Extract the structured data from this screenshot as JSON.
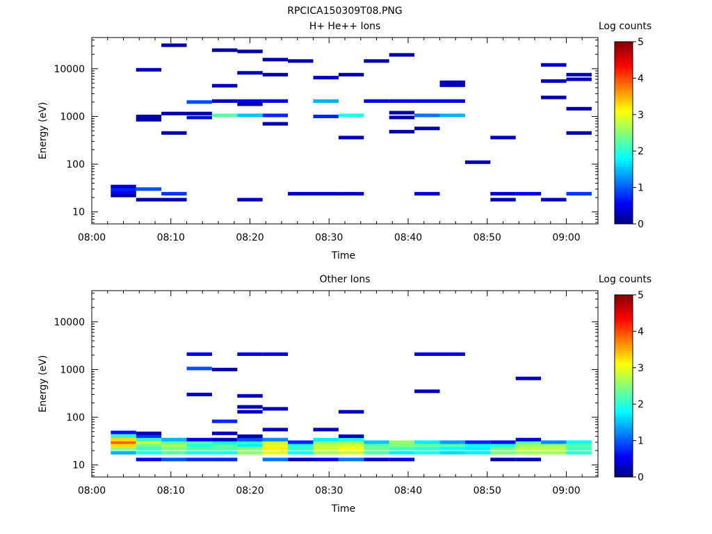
{
  "figure_title": "RPCICA150309T08.PNG",
  "colorbar": {
    "label": "Log counts",
    "ticks": [
      "0",
      "1",
      "2",
      "3",
      "4",
      "5"
    ]
  },
  "chart_data": [
    {
      "type": "heatmap",
      "title": "H+ He++ Ions",
      "xlabel": "Time",
      "ylabel": "Energy (eV)",
      "x_ticks": [
        "08:00",
        "08:10",
        "08:20",
        "08:30",
        "08:40",
        "08:50",
        "09:00"
      ],
      "y_ticks": [
        "10",
        "100",
        "1000",
        "10000"
      ],
      "y_scale": "log",
      "ylim": [
        5.6,
        45000
      ],
      "xlim_minutes": [
        0,
        64
      ],
      "colorbar_range": [
        0,
        5
      ],
      "time_bins_start_min": [
        2.4,
        5.6,
        8.8,
        12.0,
        15.2,
        18.4,
        21.6,
        24.8,
        28.0,
        31.2,
        34.4,
        37.6,
        40.8,
        44.0,
        47.2,
        50.4,
        53.6,
        56.8,
        60.0
      ],
      "cells": [
        {
          "bin": 0,
          "energy": 22,
          "v": 0.2
        },
        {
          "bin": 0,
          "energy": 26,
          "v": 0.6
        },
        {
          "bin": 0,
          "energy": 30,
          "v": 0.8
        },
        {
          "bin": 0,
          "energy": 34,
          "v": 0.4
        },
        {
          "bin": 1,
          "energy": 18,
          "v": 0.2
        },
        {
          "bin": 1,
          "energy": 30,
          "v": 1.0
        },
        {
          "bin": 1,
          "energy": 850,
          "v": 0.2
        },
        {
          "bin": 1,
          "energy": 1000,
          "v": 0.2
        },
        {
          "bin": 1,
          "energy": 9500,
          "v": 0.3
        },
        {
          "bin": 2,
          "energy": 18,
          "v": 0.2
        },
        {
          "bin": 2,
          "energy": 24,
          "v": 0.9
        },
        {
          "bin": 2,
          "energy": 450,
          "v": 0.2
        },
        {
          "bin": 2,
          "energy": 1150,
          "v": 0.2
        },
        {
          "bin": 2,
          "energy": 31000,
          "v": 0.2
        },
        {
          "bin": 3,
          "energy": 950,
          "v": 0.4
        },
        {
          "bin": 3,
          "energy": 1100,
          "v": 2.2
        },
        {
          "bin": 3,
          "energy": 1150,
          "v": 0.2
        },
        {
          "bin": 3,
          "energy": 2000,
          "v": 1.0
        },
        {
          "bin": 4,
          "energy": 1050,
          "v": 2.3
        },
        {
          "bin": 4,
          "energy": 2100,
          "v": 0.3
        },
        {
          "bin": 4,
          "energy": 4400,
          "v": 0.3
        },
        {
          "bin": 4,
          "energy": 24500,
          "v": 0.2
        },
        {
          "bin": 5,
          "energy": 18,
          "v": 0.3
        },
        {
          "bin": 5,
          "energy": 1050,
          "v": 1.6
        },
        {
          "bin": 5,
          "energy": 1800,
          "v": 0.3
        },
        {
          "bin": 5,
          "energy": 2100,
          "v": 0.5
        },
        {
          "bin": 5,
          "energy": 8200,
          "v": 0.3
        },
        {
          "bin": 5,
          "energy": 23000,
          "v": 0.2
        },
        {
          "bin": 6,
          "energy": 700,
          "v": 0.2
        },
        {
          "bin": 6,
          "energy": 1050,
          "v": 0.8
        },
        {
          "bin": 6,
          "energy": 2100,
          "v": 0.5
        },
        {
          "bin": 6,
          "energy": 7500,
          "v": 0.2
        },
        {
          "bin": 6,
          "energy": 15500,
          "v": 0.2
        },
        {
          "bin": 7,
          "energy": 24,
          "v": 0.3
        },
        {
          "bin": 7,
          "energy": 14500,
          "v": 0.2
        },
        {
          "bin": 8,
          "energy": 24,
          "v": 0.3
        },
        {
          "bin": 8,
          "energy": 1000,
          "v": 0.8
        },
        {
          "bin": 8,
          "energy": 2100,
          "v": 1.5
        },
        {
          "bin": 8,
          "energy": 6500,
          "v": 0.3
        },
        {
          "bin": 9,
          "energy": 24,
          "v": 0.3
        },
        {
          "bin": 9,
          "energy": 360,
          "v": 0.3
        },
        {
          "bin": 9,
          "energy": 1050,
          "v": 2.0
        },
        {
          "bin": 9,
          "energy": 7500,
          "v": 0.2
        },
        {
          "bin": 10,
          "energy": 2100,
          "v": 0.5
        },
        {
          "bin": 10,
          "energy": 14500,
          "v": 0.2
        },
        {
          "bin": 11,
          "energy": 480,
          "v": 0.2
        },
        {
          "bin": 11,
          "energy": 950,
          "v": 0.2
        },
        {
          "bin": 11,
          "energy": 1200,
          "v": 0.2
        },
        {
          "bin": 11,
          "energy": 2100,
          "v": 0.5
        },
        {
          "bin": 11,
          "energy": 19500,
          "v": 0.2
        },
        {
          "bin": 12,
          "energy": 24,
          "v": 0.4
        },
        {
          "bin": 12,
          "energy": 560,
          "v": 0.2
        },
        {
          "bin": 12,
          "energy": 1050,
          "v": 1.2
        },
        {
          "bin": 12,
          "energy": 2100,
          "v": 0.5
        },
        {
          "bin": 13,
          "energy": 1050,
          "v": 1.5
        },
        {
          "bin": 13,
          "energy": 2100,
          "v": 0.5
        },
        {
          "bin": 13,
          "energy": 4500,
          "v": 0.3
        },
        {
          "bin": 13,
          "energy": 5200,
          "v": 0.3
        },
        {
          "bin": 14,
          "energy": 110,
          "v": 0.3
        },
        {
          "bin": 15,
          "energy": 18,
          "v": 0.2
        },
        {
          "bin": 15,
          "energy": 24,
          "v": 0.4
        },
        {
          "bin": 15,
          "energy": 360,
          "v": 0.3
        },
        {
          "bin": 16,
          "energy": 24,
          "v": 0.6
        },
        {
          "bin": 17,
          "energy": 18,
          "v": 0.3
        },
        {
          "bin": 17,
          "energy": 2500,
          "v": 0.2
        },
        {
          "bin": 17,
          "energy": 5500,
          "v": 0.3
        },
        {
          "bin": 17,
          "energy": 12000,
          "v": 0.3
        },
        {
          "bin": 18,
          "energy": 24,
          "v": 0.9
        },
        {
          "bin": 18,
          "energy": 450,
          "v": 0.2
        },
        {
          "bin": 18,
          "energy": 1450,
          "v": 0.2
        },
        {
          "bin": 18,
          "energy": 6000,
          "v": 0.3
        },
        {
          "bin": 18,
          "energy": 7500,
          "v": 0.3
        }
      ]
    },
    {
      "type": "heatmap",
      "title": "Other Ions",
      "xlabel": "Time",
      "ylabel": "Energy (eV)",
      "x_ticks": [
        "08:00",
        "08:10",
        "08:20",
        "08:30",
        "08:40",
        "08:50",
        "09:00"
      ],
      "y_ticks": [
        "10",
        "100",
        "1000",
        "10000"
      ],
      "y_scale": "log",
      "ylim": [
        5.6,
        45000
      ],
      "xlim_minutes": [
        0,
        64
      ],
      "colorbar_range": [
        0,
        5
      ],
      "time_bins_start_min": [
        2.4,
        5.6,
        8.8,
        12.0,
        15.2,
        18.4,
        21.6,
        24.8,
        28.0,
        31.2,
        34.4,
        37.6,
        40.8,
        44.0,
        47.2,
        50.4,
        53.6,
        56.8,
        60.0
      ],
      "cells": [
        {
          "bin": 0,
          "energy": 18,
          "v": 1.5
        },
        {
          "bin": 0,
          "energy": 22,
          "v": 2.6
        },
        {
          "bin": 0,
          "energy": 26,
          "v": 3.3
        },
        {
          "bin": 0,
          "energy": 30,
          "v": 3.9
        },
        {
          "bin": 0,
          "energy": 34,
          "v": 3.3
        },
        {
          "bin": 0,
          "energy": 40,
          "v": 2.1
        },
        {
          "bin": 0,
          "energy": 48,
          "v": 0.7
        },
        {
          "bin": 1,
          "energy": 13,
          "v": 0.6
        },
        {
          "bin": 1,
          "energy": 18,
          "v": 2.0
        },
        {
          "bin": 1,
          "energy": 22,
          "v": 2.2
        },
        {
          "bin": 1,
          "energy": 26,
          "v": 2.4
        },
        {
          "bin": 1,
          "energy": 30,
          "v": 2.9
        },
        {
          "bin": 1,
          "energy": 34,
          "v": 2.1
        },
        {
          "bin": 1,
          "energy": 40,
          "v": 0.9
        },
        {
          "bin": 1,
          "energy": 46,
          "v": 0.3
        },
        {
          "bin": 2,
          "energy": 13,
          "v": 1.0
        },
        {
          "bin": 2,
          "energy": 18,
          "v": 2.3
        },
        {
          "bin": 2,
          "energy": 22,
          "v": 2.5
        },
        {
          "bin": 2,
          "energy": 26,
          "v": 2.7
        },
        {
          "bin": 2,
          "energy": 30,
          "v": 2.3
        },
        {
          "bin": 2,
          "energy": 34,
          "v": 1.5
        },
        {
          "bin": 3,
          "energy": 13,
          "v": 0.8
        },
        {
          "bin": 3,
          "energy": 18,
          "v": 2.0
        },
        {
          "bin": 3,
          "energy": 22,
          "v": 2.3
        },
        {
          "bin": 3,
          "energy": 26,
          "v": 2.0
        },
        {
          "bin": 3,
          "energy": 30,
          "v": 2.3
        },
        {
          "bin": 3,
          "energy": 34,
          "v": 0.5
        },
        {
          "bin": 3,
          "energy": 300,
          "v": 0.3
        },
        {
          "bin": 3,
          "energy": 1050,
          "v": 1.0
        },
        {
          "bin": 3,
          "energy": 2100,
          "v": 0.5
        },
        {
          "bin": 4,
          "energy": 13,
          "v": 0.8
        },
        {
          "bin": 4,
          "energy": 18,
          "v": 2.0
        },
        {
          "bin": 4,
          "energy": 22,
          "v": 2.3
        },
        {
          "bin": 4,
          "energy": 26,
          "v": 2.3
        },
        {
          "bin": 4,
          "energy": 30,
          "v": 1.8
        },
        {
          "bin": 4,
          "energy": 34,
          "v": 0.3
        },
        {
          "bin": 4,
          "energy": 46,
          "v": 0.3
        },
        {
          "bin": 4,
          "energy": 82,
          "v": 0.8
        },
        {
          "bin": 4,
          "energy": 1000,
          "v": 0.2
        },
        {
          "bin": 5,
          "energy": 18,
          "v": 2.6
        },
        {
          "bin": 5,
          "energy": 22,
          "v": 2.5
        },
        {
          "bin": 5,
          "energy": 26,
          "v": 1.8
        },
        {
          "bin": 5,
          "energy": 30,
          "v": 2.1
        },
        {
          "bin": 5,
          "energy": 34,
          "v": 1.0
        },
        {
          "bin": 5,
          "energy": 40,
          "v": 0.2
        },
        {
          "bin": 5,
          "energy": 130,
          "v": 0.3
        },
        {
          "bin": 5,
          "energy": 165,
          "v": 0.3
        },
        {
          "bin": 5,
          "energy": 280,
          "v": 0.3
        },
        {
          "bin": 5,
          "energy": 2100,
          "v": 0.5
        },
        {
          "bin": 6,
          "energy": 13,
          "v": 1.2
        },
        {
          "bin": 6,
          "energy": 18,
          "v": 3.0
        },
        {
          "bin": 6,
          "energy": 22,
          "v": 3.2
        },
        {
          "bin": 6,
          "energy": 26,
          "v": 3.0
        },
        {
          "bin": 6,
          "energy": 30,
          "v": 2.9
        },
        {
          "bin": 6,
          "energy": 34,
          "v": 1.3
        },
        {
          "bin": 6,
          "energy": 55,
          "v": 0.3
        },
        {
          "bin": 6,
          "energy": 150,
          "v": 0.3
        },
        {
          "bin": 6,
          "energy": 2100,
          "v": 0.5
        },
        {
          "bin": 7,
          "energy": 13,
          "v": 0.3
        },
        {
          "bin": 7,
          "energy": 18,
          "v": 2.0
        },
        {
          "bin": 7,
          "energy": 22,
          "v": 2.1
        },
        {
          "bin": 7,
          "energy": 26,
          "v": 2.0
        },
        {
          "bin": 7,
          "energy": 30,
          "v": 0.8
        },
        {
          "bin": 8,
          "energy": 13,
          "v": 0.6
        },
        {
          "bin": 8,
          "energy": 18,
          "v": 2.7
        },
        {
          "bin": 8,
          "energy": 22,
          "v": 2.9
        },
        {
          "bin": 8,
          "energy": 26,
          "v": 2.8
        },
        {
          "bin": 8,
          "energy": 30,
          "v": 2.5
        },
        {
          "bin": 8,
          "energy": 34,
          "v": 1.8
        },
        {
          "bin": 8,
          "energy": 55,
          "v": 0.3
        },
        {
          "bin": 9,
          "energy": 13,
          "v": 1.2
        },
        {
          "bin": 9,
          "energy": 18,
          "v": 2.9
        },
        {
          "bin": 9,
          "energy": 22,
          "v": 3.1
        },
        {
          "bin": 9,
          "energy": 26,
          "v": 2.9
        },
        {
          "bin": 9,
          "energy": 30,
          "v": 2.6
        },
        {
          "bin": 9,
          "energy": 34,
          "v": 2.0
        },
        {
          "bin": 9,
          "energy": 40,
          "v": 0.3
        },
        {
          "bin": 9,
          "energy": 130,
          "v": 0.3
        },
        {
          "bin": 10,
          "energy": 13,
          "v": 0.4
        },
        {
          "bin": 10,
          "energy": 18,
          "v": 2.3
        },
        {
          "bin": 10,
          "energy": 22,
          "v": 2.4
        },
        {
          "bin": 10,
          "energy": 26,
          "v": 2.3
        },
        {
          "bin": 10,
          "energy": 30,
          "v": 1.6
        },
        {
          "bin": 11,
          "energy": 13,
          "v": 0.6
        },
        {
          "bin": 11,
          "energy": 18,
          "v": 1.8
        },
        {
          "bin": 11,
          "energy": 22,
          "v": 2.2
        },
        {
          "bin": 11,
          "energy": 26,
          "v": 2.5
        },
        {
          "bin": 11,
          "energy": 30,
          "v": 2.6
        },
        {
          "bin": 12,
          "energy": 18,
          "v": 2.0
        },
        {
          "bin": 12,
          "energy": 22,
          "v": 2.1
        },
        {
          "bin": 12,
          "energy": 26,
          "v": 2.4
        },
        {
          "bin": 12,
          "energy": 30,
          "v": 1.8
        },
        {
          "bin": 12,
          "energy": 350,
          "v": 0.3
        },
        {
          "bin": 12,
          "energy": 2100,
          "v": 0.5
        },
        {
          "bin": 13,
          "energy": 18,
          "v": 1.7
        },
        {
          "bin": 13,
          "energy": 22,
          "v": 1.9
        },
        {
          "bin": 13,
          "energy": 26,
          "v": 2.3
        },
        {
          "bin": 13,
          "energy": 30,
          "v": 1.4
        },
        {
          "bin": 13,
          "energy": 2100,
          "v": 0.5
        },
        {
          "bin": 14,
          "energy": 18,
          "v": 1.8
        },
        {
          "bin": 14,
          "energy": 22,
          "v": 1.8
        },
        {
          "bin": 14,
          "energy": 26,
          "v": 1.9
        },
        {
          "bin": 14,
          "energy": 30,
          "v": 0.8
        },
        {
          "bin": 15,
          "energy": 13,
          "v": 0.2
        },
        {
          "bin": 15,
          "energy": 18,
          "v": 2.5
        },
        {
          "bin": 15,
          "energy": 22,
          "v": 2.4
        },
        {
          "bin": 15,
          "energy": 26,
          "v": 2.0
        },
        {
          "bin": 15,
          "energy": 30,
          "v": 0.7
        },
        {
          "bin": 16,
          "energy": 13,
          "v": 0.3
        },
        {
          "bin": 16,
          "energy": 18,
          "v": 2.7
        },
        {
          "bin": 16,
          "energy": 22,
          "v": 2.8
        },
        {
          "bin": 16,
          "energy": 26,
          "v": 2.6
        },
        {
          "bin": 16,
          "energy": 30,
          "v": 2.3
        },
        {
          "bin": 16,
          "energy": 34,
          "v": 0.5
        },
        {
          "bin": 16,
          "energy": 650,
          "v": 0.3
        },
        {
          "bin": 17,
          "energy": 18,
          "v": 2.7
        },
        {
          "bin": 17,
          "energy": 22,
          "v": 2.8
        },
        {
          "bin": 17,
          "energy": 26,
          "v": 2.6
        },
        {
          "bin": 17,
          "energy": 30,
          "v": 1.3
        },
        {
          "bin": 18,
          "energy": 18,
          "v": 2.1
        },
        {
          "bin": 18,
          "energy": 22,
          "v": 2.2
        },
        {
          "bin": 18,
          "energy": 26,
          "v": 2.3
        },
        {
          "bin": 18,
          "energy": 30,
          "v": 1.9
        }
      ]
    }
  ]
}
